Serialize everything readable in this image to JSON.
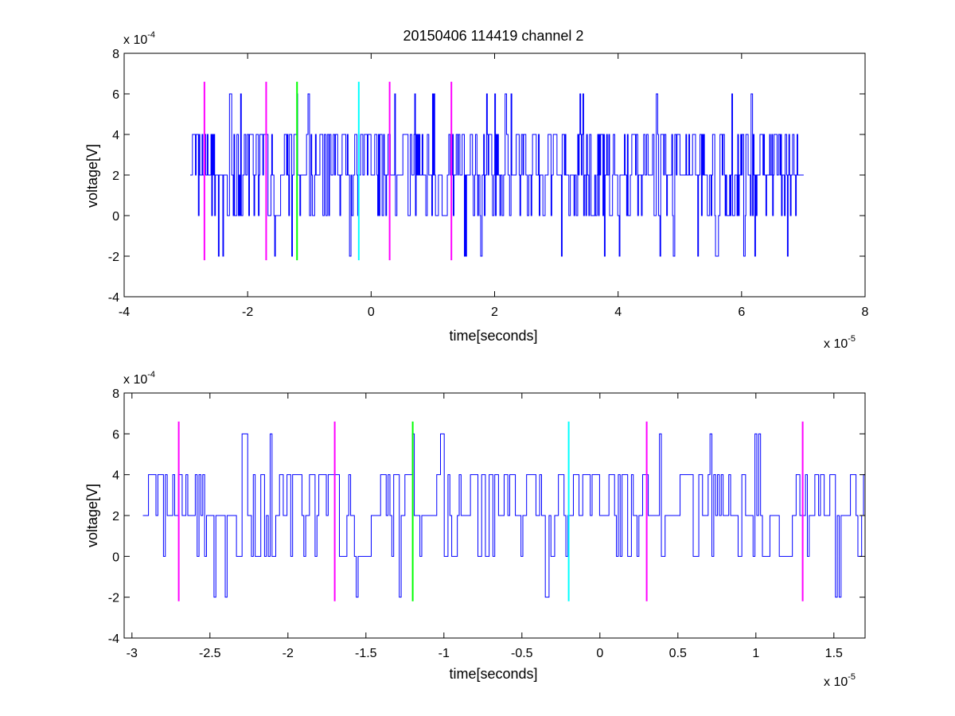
{
  "chart_data": [
    {
      "type": "line",
      "title": "20150406 114419 channel 2",
      "xlabel": "time[seconds]",
      "ylabel": "voltage[V]",
      "x_multiplier": {
        "base": "x 10",
        "exp": "-5"
      },
      "y_multiplier": {
        "base": "x 10",
        "exp": "-4"
      },
      "xlim": [
        -4,
        8
      ],
      "ylim": [
        -4,
        8
      ],
      "xticks": [
        -4,
        -2,
        0,
        2,
        4,
        6,
        8
      ],
      "xtick_labels": [
        "-4",
        "-2",
        "0",
        "2",
        "4",
        "6",
        "8"
      ],
      "yticks": [
        -4,
        -2,
        0,
        2,
        4,
        6,
        8
      ],
      "ytick_labels": [
        "-4",
        "-2",
        "0",
        "2",
        "4",
        "6",
        "8"
      ],
      "grid": false,
      "signal": {
        "color": "#0000ff",
        "x_range": [
          -2.93,
          7.0
        ],
        "levels": [
          -2,
          0,
          2,
          4,
          6
        ],
        "baseline": 2
      },
      "markers": [
        {
          "x": -2.7,
          "color": "#ff00ff",
          "y_range": [
            -2.2,
            6.6
          ]
        },
        {
          "x": -1.7,
          "color": "#ff00ff",
          "y_range": [
            -2.2,
            6.6
          ]
        },
        {
          "x": -1.2,
          "color": "#00ff00",
          "y_range": [
            -2.2,
            6.6
          ]
        },
        {
          "x": -0.2,
          "color": "#00ffff",
          "y_range": [
            -2.2,
            6.6
          ]
        },
        {
          "x": 0.3,
          "color": "#ff00ff",
          "y_range": [
            -2.2,
            6.6
          ]
        },
        {
          "x": 1.3,
          "color": "#ff00ff",
          "y_range": [
            -2.2,
            6.6
          ]
        }
      ]
    },
    {
      "type": "line",
      "title": "",
      "xlabel": "time[seconds]",
      "ylabel": "voltage[V]",
      "x_multiplier": {
        "base": "x 10",
        "exp": "-5"
      },
      "y_multiplier": {
        "base": "x 10",
        "exp": "-4"
      },
      "xlim": [
        -3.05,
        1.7
      ],
      "ylim": [
        -4,
        8
      ],
      "xticks": [
        -3,
        -2.5,
        -2,
        -1.5,
        -1,
        -0.5,
        0,
        0.5,
        1,
        1.5
      ],
      "xtick_labels": [
        "-3",
        "-2.5",
        "-2",
        "-1.5",
        "-1",
        "-0.5",
        "0",
        "0.5",
        "1",
        "1.5"
      ],
      "yticks": [
        -4,
        -2,
        0,
        2,
        4,
        6,
        8
      ],
      "ytick_labels": [
        "-4",
        "-2",
        "0",
        "2",
        "4",
        "6",
        "8"
      ],
      "grid": false,
      "signal": {
        "color": "#0000ff",
        "x_range": [
          -2.93,
          1.7
        ],
        "levels": [
          -2,
          0,
          2,
          4,
          6
        ],
        "baseline": 2
      },
      "markers": [
        {
          "x": -2.7,
          "color": "#ff00ff",
          "y_range": [
            -2.2,
            6.6
          ]
        },
        {
          "x": -1.7,
          "color": "#ff00ff",
          "y_range": [
            -2.2,
            6.6
          ]
        },
        {
          "x": -1.2,
          "color": "#00ff00",
          "y_range": [
            -2.2,
            6.6
          ]
        },
        {
          "x": -0.2,
          "color": "#00ffff",
          "y_range": [
            -2.2,
            6.6
          ]
        },
        {
          "x": 0.3,
          "color": "#ff00ff",
          "y_range": [
            -2.2,
            6.6
          ]
        },
        {
          "x": 1.3,
          "color": "#ff00ff",
          "y_range": [
            -2.2,
            6.6
          ]
        }
      ]
    }
  ]
}
